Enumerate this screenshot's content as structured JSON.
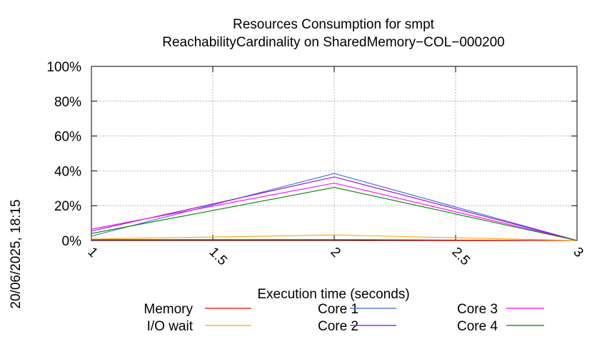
{
  "chart_data": {
    "type": "line",
    "title": "Resources Consumption for smpt",
    "subtitle": "ReachabilityCardinality on SharedMemory−COL−000200",
    "xlabel": "Execution time (seconds)",
    "ylabel": "",
    "side_label": "20/06/2025, 18:15",
    "xlim": [
      1,
      3
    ],
    "ylim": [
      0,
      100
    ],
    "xticks": [
      1,
      1.5,
      2,
      2.5,
      3
    ],
    "xtick_labels": [
      "1",
      "1.5",
      "2",
      "2.5",
      "3"
    ],
    "yticks": [
      0,
      20,
      40,
      60,
      80,
      100
    ],
    "ytick_labels": [
      "0%",
      "20%",
      "40%",
      "60%",
      "80%",
      "100%"
    ],
    "grid": true,
    "legend_position": "bottom",
    "x": [
      1,
      2,
      3
    ],
    "series": [
      {
        "name": "Memory",
        "color": "#ff0000",
        "values": [
          0.5,
          0.5,
          0
        ]
      },
      {
        "name": "I/O wait",
        "color": "#ffa500",
        "values": [
          0.8,
          3.2,
          0
        ]
      },
      {
        "name": "Core 1",
        "color": "#4169e1",
        "values": [
          2.5,
          38.5,
          0
        ]
      },
      {
        "name": "Core 2",
        "color": "#9400d3",
        "values": [
          5.5,
          36.5,
          0
        ]
      },
      {
        "name": "Core 3",
        "color": "#ff00ff",
        "values": [
          6.5,
          33.0,
          0
        ]
      },
      {
        "name": "Core 4",
        "color": "#008000",
        "values": [
          4.0,
          30.5,
          0
        ]
      }
    ]
  }
}
